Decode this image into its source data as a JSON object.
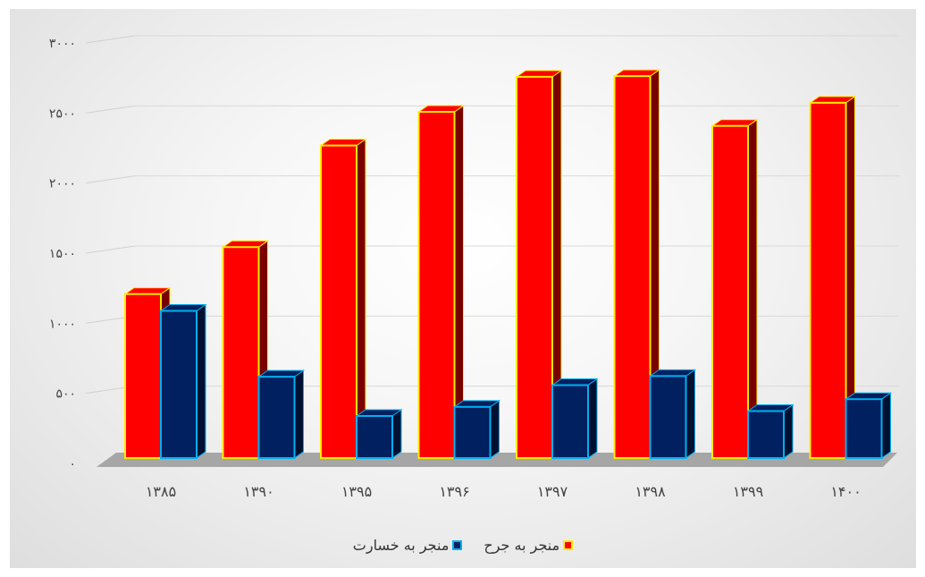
{
  "chart_data": {
    "type": "bar",
    "style": "3d-clustered-column",
    "categories": [
      "۱۳۸۵",
      "۱۳۹۰",
      "۱۳۹۵",
      "۱۳۹۶",
      "۱۳۹۷",
      "۱۳۹۸",
      "۱۳۹۹",
      "۱۴۰۰"
    ],
    "series": [
      {
        "name": "منجر به جرح",
        "values": [
          1170,
          1505,
          2230,
          2470,
          2720,
          2725,
          2370,
          2535
        ],
        "fill": "#ff0000",
        "side": "#7a0000",
        "border": "#ffeb00"
      },
      {
        "name": "منجر به خسارت",
        "values": [
          1050,
          580,
          300,
          365,
          520,
          585,
          335,
          420
        ],
        "fill": "#002060",
        "side": "#001030",
        "border": "#00b0f0"
      }
    ],
    "ylim": [
      0,
      3000
    ],
    "yticks": [
      {
        "value": 0,
        "label": "۰"
      },
      {
        "value": 500,
        "label": "۵۰۰"
      },
      {
        "value": 1000,
        "label": "۱۰۰۰"
      },
      {
        "value": 1500,
        "label": "۱۵۰۰"
      },
      {
        "value": 2000,
        "label": "۲۰۰۰"
      },
      {
        "value": 2500,
        "label": "۲۵۰۰"
      },
      {
        "value": 3000,
        "label": "۳۰۰۰"
      }
    ],
    "grid": true,
    "legend_position": "bottom",
    "title": "",
    "xlabel": "",
    "ylabel": ""
  }
}
